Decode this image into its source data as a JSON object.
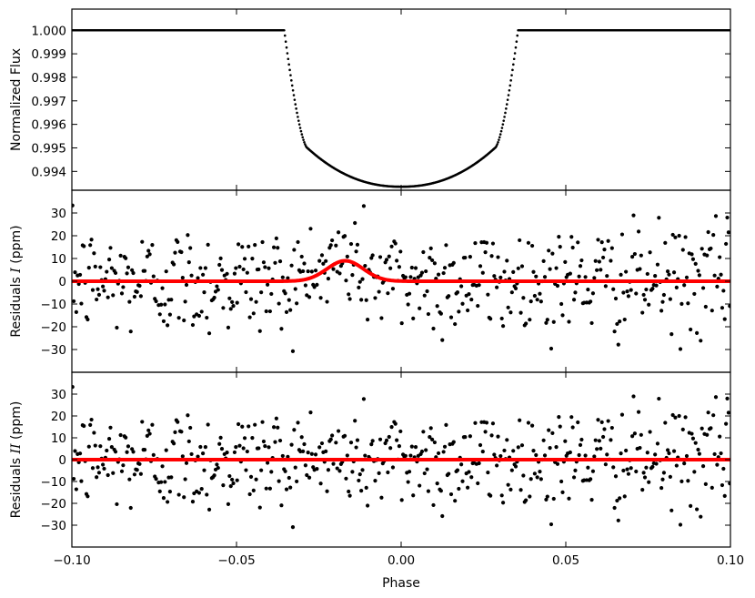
{
  "chart_data": [
    {
      "type": "scatter",
      "panel": "flux",
      "title": "",
      "xlabel": "",
      "ylabel": "Normalized Flux",
      "xlim": [
        -0.1,
        0.1
      ],
      "ylim": [
        0.9932,
        1.0009
      ],
      "yticks": [
        0.994,
        0.995,
        0.996,
        0.997,
        0.998,
        0.999,
        1.0
      ],
      "ytick_labels": [
        "0.994",
        "0.995",
        "0.996",
        "0.997",
        "0.998",
        "0.999",
        "1.000"
      ],
      "series": [
        {
          "kind": "transit_light_curve",
          "out_of_transit_flux": 1.0,
          "first_contact": -0.0355,
          "second_contact": -0.0285,
          "third_contact": 0.0285,
          "fourth_contact": 0.0355,
          "flux_at_second_contact": 0.995,
          "minimum_flux": 0.99335,
          "minimum_phase": 0.0,
          "color": "#000000"
        }
      ],
      "grid": false
    },
    {
      "type": "scatter",
      "panel": "residuals-1",
      "xlabel": "",
      "ylabel": "Residuals I (ppm)",
      "ylabel_prefix": "Residuals ",
      "ylabel_roman": "I",
      "ylabel_suffix": " (ppm)",
      "xlim": [
        -0.1,
        0.1
      ],
      "ylim": [
        -40,
        40
      ],
      "yticks": [
        -30,
        -20,
        -10,
        0,
        10,
        20,
        30
      ],
      "ytick_labels": [
        "−30",
        "−20",
        "−10",
        "0",
        "10",
        "20",
        "30"
      ],
      "model_line": {
        "kind": "gaussian_bump",
        "baseline": 0,
        "peak": 9,
        "center": -0.017,
        "sigma": 0.0055,
        "color": "#ff0000"
      },
      "scatter_stddev_ppm": 12,
      "grid": false
    },
    {
      "type": "scatter",
      "panel": "residuals-2",
      "xlabel": "Phase",
      "ylabel": "Residuals II (ppm)",
      "ylabel_prefix": "Residuals ",
      "ylabel_roman": "II",
      "ylabel_suffix": " (ppm)",
      "xlim": [
        -0.1,
        0.1
      ],
      "ylim": [
        -40,
        40
      ],
      "yticks": [
        -30,
        -20,
        -10,
        0,
        10,
        20,
        30
      ],
      "ytick_labels": [
        "−30",
        "−20",
        "−10",
        "0",
        "10",
        "20",
        "30"
      ],
      "xticks": [
        -0.1,
        -0.05,
        0.0,
        0.05,
        0.1
      ],
      "xtick_labels": [
        "−0.10",
        "−0.05",
        "0.00",
        "0.05",
        "0.10"
      ],
      "model_line": {
        "kind": "flat",
        "baseline": 0,
        "color": "#ff0000"
      },
      "scatter_stddev_ppm": 12,
      "grid": false
    }
  ]
}
